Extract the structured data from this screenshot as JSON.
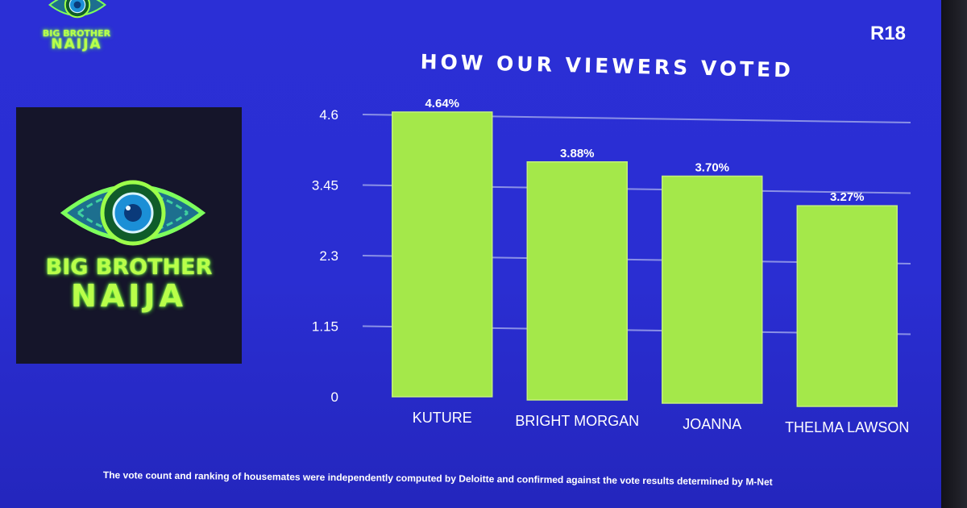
{
  "logo": {
    "line1": "BIG BROTHER",
    "line2": "NAIJA"
  },
  "rating": "R18",
  "chart_data": {
    "type": "bar",
    "title": "HOW OUR VIEWERS VOTED",
    "categories": [
      "KUTURE",
      "BRIGHT MORGAN",
      "JOANNA",
      "THELMA LAWSON"
    ],
    "values": [
      4.64,
      3.88,
      3.7,
      3.27
    ],
    "data_labels": [
      "4.64%",
      "3.88%",
      "3.70%",
      "3.27%"
    ],
    "yticks": [
      "0",
      "1.15",
      "2.3",
      "3.45",
      "4.6"
    ],
    "ylim": [
      0,
      4.6
    ],
    "grid": true,
    "legend": false,
    "bar_color": "#a4e84a",
    "grid_color": "#8a90e6"
  },
  "footnote": "The vote count and ranking of housemates were independently computed by Deloitte and confirmed against the vote results determined by M-Net"
}
